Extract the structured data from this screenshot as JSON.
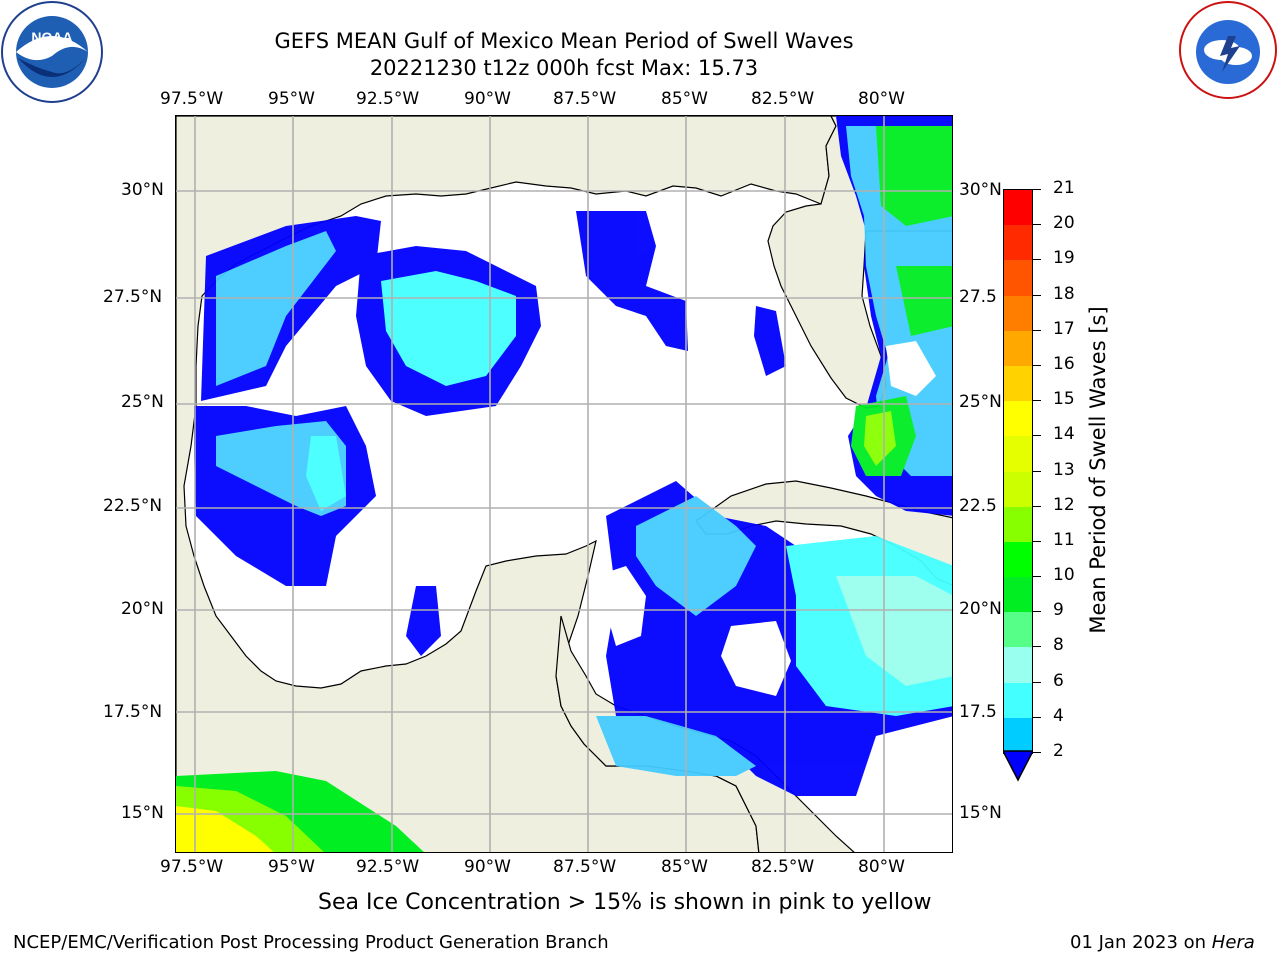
{
  "title_line1": "GEFS MEAN Gulf of Mexico Mean Period of Swell Waves",
  "title_line2": "20221230 t12z 000h fcst   Max: 15.73",
  "lon_ticks": [
    "97.5°W",
    "95°W",
    "92.5°W",
    "90°W",
    "87.5°W",
    "85°W",
    "82.5°W",
    "80°W"
  ],
  "lat_ticks_left": [
    "30°N",
    "27.5°N",
    "25°N",
    "22.5°N",
    "20°N",
    "17.5°N",
    "15°N"
  ],
  "lat_ticks_right": [
    "30°N",
    "27.5",
    "25°N",
    "22.5",
    "20°N",
    "17.5",
    "15°N"
  ],
  "colorbar": {
    "title": "Mean Period of Swell Waves [s]",
    "ticks": [
      "21",
      "20",
      "19",
      "18",
      "17",
      "16",
      "15",
      "14",
      "13",
      "12",
      "11",
      "10",
      "9",
      "8",
      "6",
      "4",
      "2"
    ],
    "colors": [
      "#ff0000",
      "#ff2a00",
      "#ff5400",
      "#ff7e00",
      "#ffa800",
      "#ffd200",
      "#ffff00",
      "#e6ff00",
      "#ccff00",
      "#88ff00",
      "#00ff00",
      "#00ee22",
      "#55ff88",
      "#99ffee",
      "#44ffff",
      "#00ccff",
      "#0066ff",
      "#0000ff"
    ]
  },
  "icons": {
    "left_logo": "noaa-logo",
    "right_logo": "nws-logo"
  },
  "subtitle": "Sea Ice Concentration > 15% is shown in pink to yellow",
  "footer_left": "NCEP/EMC/Verification Post Processing Product Generation Branch",
  "footer_date": "01 Jan 2023 on ",
  "footer_machine": "Hera",
  "colors": {
    "land": "#efefdf",
    "grid": "#b0b0b0",
    "ocean": "#ffffff"
  }
}
